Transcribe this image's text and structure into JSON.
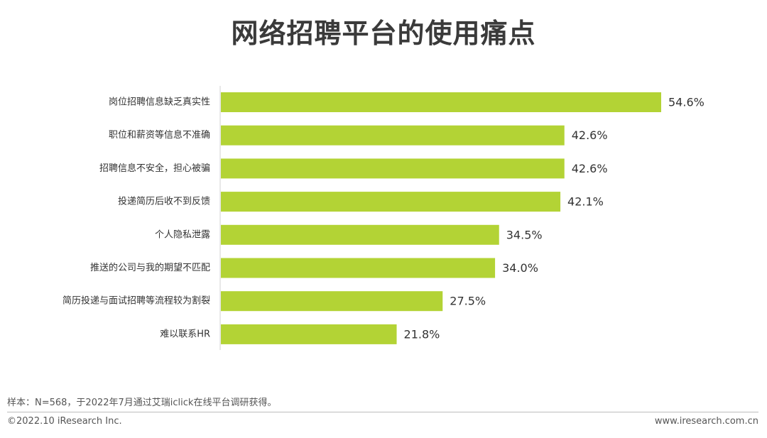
{
  "chart_data": {
    "type": "bar",
    "orientation": "horizontal",
    "title": "网络招聘平台的使用痛点",
    "categories": [
      "岗位招聘信息缺乏真实性",
      "职位和薪资等信息不准确",
      "招聘信息不安全，担心被骗",
      "投递简历后收不到反馈",
      "个人隐私泄露",
      "推送的公司与我的期望不匹配",
      "简历投递与面试招聘等流程较为割裂",
      "难以联系HR"
    ],
    "values": [
      54.6,
      42.6,
      42.6,
      42.1,
      34.5,
      34.0,
      27.5,
      21.8
    ],
    "value_labels": [
      "54.6%",
      "42.6%",
      "42.6%",
      "42.1%",
      "34.5%",
      "34.0%",
      "27.5%",
      "21.8%"
    ],
    "xlim": [
      0,
      54.6
    ],
    "grid": false,
    "bar_color": "#b3d335"
  },
  "footer": {
    "note": "样本：N=568，于2022年7月通过艾瑞iclick在线平台调研获得。",
    "copyright": "©2022.10 iResearch Inc.",
    "website": "www.iresearch.com.cn"
  }
}
